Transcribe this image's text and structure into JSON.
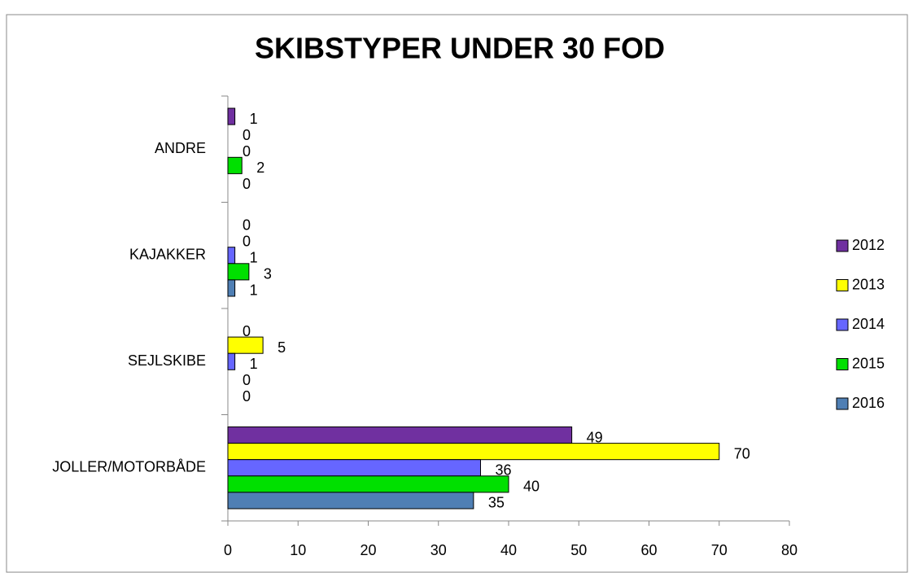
{
  "chart_data": {
    "type": "hbar",
    "title": "SKIBSTYPER UNDER 30 FOD",
    "categories": [
      "JOLLER/MOTORBÅDE",
      "SEJLSKIBE",
      "KAJAKKER",
      "ANDRE"
    ],
    "series": [
      {
        "name": "2012",
        "color": "#7030a0",
        "values": [
          49,
          0,
          0,
          1
        ]
      },
      {
        "name": "2013",
        "color": "#ffff00",
        "values": [
          70,
          5,
          0,
          0
        ]
      },
      {
        "name": "2014",
        "color": "#6666ff",
        "values": [
          36,
          1,
          1,
          0
        ]
      },
      {
        "name": "2015",
        "color": "#00e000",
        "values": [
          40,
          0,
          3,
          2
        ]
      },
      {
        "name": "2016",
        "color": "#4f7fb4",
        "values": [
          35,
          0,
          1,
          0
        ]
      }
    ],
    "xlim": [
      0,
      80
    ],
    "xticks": [
      0,
      10,
      20,
      30,
      40,
      50,
      60,
      70,
      80
    ],
    "legend": "right"
  }
}
